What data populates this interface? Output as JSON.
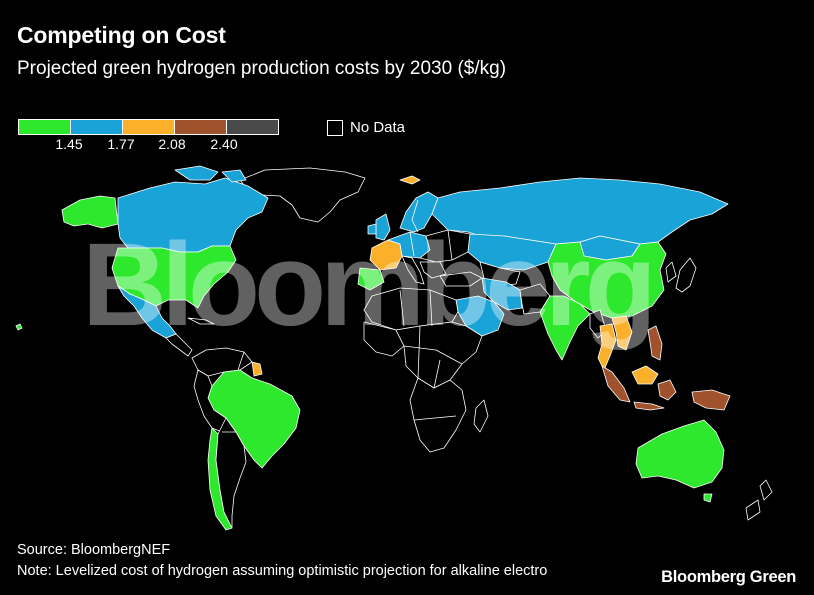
{
  "header": {
    "title": "Competing on Cost",
    "subtitle": "Projected green hydrogen production costs by 2030 ($/kg)"
  },
  "legend": {
    "colors": [
      "#2ee82e",
      "#1aa3d6",
      "#fbb02c",
      "#a0522d",
      "#4a4a4a"
    ],
    "thresholds": [
      "1.45",
      "1.77",
      "2.08",
      "2.40"
    ],
    "no_data_label": "No Data"
  },
  "map": {
    "bins": {
      "green": "#2ee82e",
      "blue": "#1aa3d6",
      "orange": "#fbb02c",
      "brown": "#a0522d",
      "gray": "#4a4a4a"
    }
  },
  "watermark": "Bloomberg",
  "footer": {
    "source": "Source: BloombergNEF",
    "note": "Note: Levelized cost of hydrogen assuming optimistic projection for alkaline electro",
    "brand": "Bloomberg Green"
  }
}
